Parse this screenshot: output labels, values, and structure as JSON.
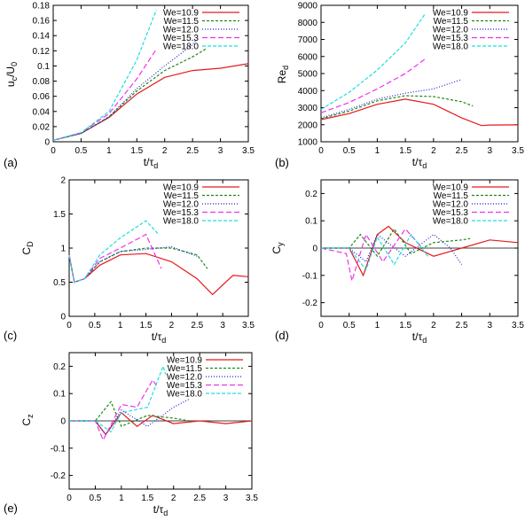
{
  "legend_labels": [
    "We=10.9",
    "We=11.5",
    "We=12.0",
    "We=15.3",
    "We=18.0"
  ],
  "series_colors": [
    "#e41a1c",
    "#1a8a1a",
    "#1f1fd0",
    "#ee33ee",
    "#22dddd"
  ],
  "series_dash": [
    "",
    "3,2",
    "1,2",
    "6,3",
    "4,2"
  ],
  "chart_data": [
    {
      "id": "a",
      "panel_label": "(a)",
      "type": "line",
      "xlabel": "t/τd",
      "ylabel": "uc/U0",
      "xlim": [
        0,
        3.5
      ],
      "ylim": [
        0,
        0.18
      ],
      "xticks": [
        "0",
        "0.5",
        "1",
        "1.5",
        "2",
        "2.5",
        "3",
        "3.5"
      ],
      "yticks": [
        "0",
        "0.02",
        "0.04",
        "0.06",
        "0.08",
        "0.1",
        "0.12",
        "0.14",
        "0.16",
        "0.18"
      ],
      "legend": "top-right",
      "series": [
        {
          "x": [
            0,
            0.5,
            1.0,
            1.5,
            2.0,
            2.5,
            3.0,
            3.5
          ],
          "y": [
            0.002,
            0.011,
            0.032,
            0.063,
            0.085,
            0.094,
            0.097,
            0.103
          ]
        },
        {
          "x": [
            0,
            0.5,
            1.0,
            1.5,
            2.0,
            2.5,
            2.75
          ],
          "y": [
            0.002,
            0.011,
            0.033,
            0.067,
            0.094,
            0.112,
            0.123
          ]
        },
        {
          "x": [
            0,
            0.5,
            1.0,
            1.5,
            2.0,
            2.5,
            2.55
          ],
          "y": [
            0.002,
            0.011,
            0.033,
            0.07,
            0.1,
            0.128,
            0.133
          ]
        },
        {
          "x": [
            0,
            0.5,
            1.0,
            1.5,
            1.85
          ],
          "y": [
            0.002,
            0.012,
            0.037,
            0.083,
            0.122
          ]
        },
        {
          "x": [
            0,
            0.5,
            1.0,
            1.5,
            1.85
          ],
          "y": [
            0.002,
            0.012,
            0.04,
            0.108,
            0.174
          ]
        }
      ]
    },
    {
      "id": "b",
      "panel_label": "(b)",
      "type": "line",
      "xlabel": "t/τd",
      "ylabel": "Red",
      "xlim": [
        0,
        3.5
      ],
      "ylim": [
        1000,
        9000
      ],
      "xticks": [
        "0",
        "0.5",
        "1",
        "1.5",
        "2",
        "2.5",
        "3",
        "3.5"
      ],
      "yticks": [
        "1000",
        "2000",
        "3000",
        "4000",
        "5000",
        "6000",
        "7000",
        "8000",
        "9000"
      ],
      "legend": "top-right",
      "series": [
        {
          "x": [
            0,
            0.5,
            1.0,
            1.5,
            2.0,
            2.5,
            2.85,
            3.0,
            3.5
          ],
          "y": [
            2300,
            2650,
            3200,
            3500,
            3200,
            2400,
            1950,
            1980,
            1990
          ]
        },
        {
          "x": [
            0,
            0.5,
            1.0,
            1.5,
            2.0,
            2.5,
            2.7
          ],
          "y": [
            2350,
            2800,
            3400,
            3700,
            3650,
            3350,
            3100
          ]
        },
        {
          "x": [
            0,
            0.5,
            1.0,
            1.5,
            2.0,
            2.5
          ],
          "y": [
            2400,
            2900,
            3500,
            3850,
            4100,
            4650
          ]
        },
        {
          "x": [
            0,
            0.5,
            1.0,
            1.5,
            1.85
          ],
          "y": [
            2700,
            3300,
            4100,
            5000,
            5850
          ]
        },
        {
          "x": [
            0,
            0.5,
            1.0,
            1.5,
            1.85
          ],
          "y": [
            2900,
            3900,
            5200,
            6800,
            8500
          ]
        }
      ]
    },
    {
      "id": "c",
      "panel_label": "(c)",
      "type": "line",
      "xlabel": "t/τd",
      "ylabel": "CD",
      "xlim": [
        0,
        3.5
      ],
      "ylim": [
        0,
        2
      ],
      "xticks": [
        "0",
        "0.5",
        "1",
        "1.5",
        "2",
        "2.5",
        "3",
        "3.5"
      ],
      "yticks": [
        "0",
        "0.5",
        "1",
        "1.5",
        "2"
      ],
      "legend": "top-right",
      "series": [
        {
          "x": [
            0,
            0.1,
            0.3,
            0.6,
            1.0,
            1.5,
            2.0,
            2.5,
            2.8,
            3.2,
            3.5
          ],
          "y": [
            0.9,
            0.5,
            0.55,
            0.75,
            0.9,
            0.92,
            0.8,
            0.55,
            0.32,
            0.6,
            0.58
          ]
        },
        {
          "x": [
            0,
            0.1,
            0.3,
            0.6,
            1.0,
            1.5,
            2.0,
            2.5,
            2.7
          ],
          "y": [
            0.9,
            0.5,
            0.55,
            0.8,
            0.95,
            1.0,
            1.0,
            0.9,
            0.7
          ]
        },
        {
          "x": [
            0,
            0.1,
            0.3,
            0.6,
            1.0,
            1.5,
            2.0,
            2.5
          ],
          "y": [
            0.9,
            0.5,
            0.55,
            0.8,
            0.95,
            0.98,
            1.02,
            0.88
          ]
        },
        {
          "x": [
            0,
            0.1,
            0.3,
            0.6,
            1.0,
            1.5,
            1.8
          ],
          "y": [
            0.9,
            0.5,
            0.55,
            0.85,
            1.0,
            1.2,
            0.7
          ]
        },
        {
          "x": [
            0,
            0.1,
            0.3,
            0.6,
            1.0,
            1.5,
            1.75
          ],
          "y": [
            0.9,
            0.5,
            0.55,
            0.9,
            1.15,
            1.4,
            1.2
          ]
        }
      ]
    },
    {
      "id": "d",
      "panel_label": "(d)",
      "type": "line",
      "xlabel": "t/τd",
      "ylabel": "Cy",
      "xlim": [
        0,
        3.5
      ],
      "ylim": [
        -0.25,
        0.25
      ],
      "xticks": [
        "0",
        "0.5",
        "1",
        "1.5",
        "2",
        "2.5",
        "3",
        "3.5"
      ],
      "yticks": [
        "-0.2",
        "-0.1",
        "0",
        "0.1",
        "0.2"
      ],
      "legend": "top-right",
      "series": [
        {
          "x": [
            0,
            0.5,
            0.75,
            1.0,
            1.2,
            1.5,
            2.0,
            2.5,
            3.0,
            3.5
          ],
          "y": [
            0,
            0,
            -0.1,
            0.05,
            0.08,
            0.02,
            -0.03,
            0.0,
            0.03,
            0.02
          ]
        },
        {
          "x": [
            0,
            0.5,
            0.7,
            1.0,
            1.3,
            1.6,
            2.0,
            2.5,
            2.65
          ],
          "y": [
            0,
            0,
            0.05,
            -0.03,
            0.07,
            -0.02,
            0.02,
            0.03,
            0.035
          ]
        },
        {
          "x": [
            0,
            0.5,
            0.8,
            1.0,
            1.5,
            2.0,
            2.3,
            2.5
          ],
          "y": [
            0,
            0,
            -0.05,
            0.05,
            -0.03,
            0.05,
            0.0,
            -0.06
          ]
        },
        {
          "x": [
            0,
            0.45,
            0.55,
            0.8,
            1.1,
            1.5,
            1.8
          ],
          "y": [
            0,
            -0.02,
            -0.12,
            0.05,
            -0.05,
            0.07,
            0.0
          ]
        },
        {
          "x": [
            0,
            0.5,
            0.8,
            1.0,
            1.3,
            1.6,
            1.9
          ],
          "y": [
            0,
            0,
            -0.08,
            0.04,
            -0.06,
            0.05,
            -0.03
          ]
        }
      ]
    },
    {
      "id": "e",
      "panel_label": "(e)",
      "type": "line",
      "xlabel": "t/τd",
      "ylabel": "Cz",
      "xlim": [
        0,
        3.5
      ],
      "ylim": [
        -0.25,
        0.25
      ],
      "xticks": [
        "0",
        "0.5",
        "1",
        "1.5",
        "2",
        "2.5",
        "3",
        "3.5"
      ],
      "yticks": [
        "-0.2",
        "-0.1",
        "0",
        "0.1",
        "0.2"
      ],
      "legend": "top-right",
      "series": [
        {
          "x": [
            0,
            0.5,
            0.7,
            1.0,
            1.3,
            1.6,
            2.0,
            2.5,
            3.0,
            3.5
          ],
          "y": [
            0,
            0,
            -0.05,
            0.03,
            -0.02,
            0.02,
            -0.01,
            0.0,
            -0.01,
            0.0
          ]
        },
        {
          "x": [
            0,
            0.5,
            0.8,
            1.0,
            1.5,
            2.0,
            2.3
          ],
          "y": [
            0,
            0,
            0.07,
            -0.02,
            0.02,
            0.01,
            0.0
          ]
        },
        {
          "x": [
            0,
            0.5,
            0.7,
            1.0,
            1.5,
            2.0,
            2.3
          ],
          "y": [
            0,
            0,
            -0.05,
            0.04,
            -0.02,
            0.05,
            0.08
          ]
        },
        {
          "x": [
            0,
            0.5,
            0.65,
            1.0,
            1.3,
            1.6,
            1.7
          ],
          "y": [
            0,
            0,
            -0.07,
            0.06,
            0.05,
            0.15,
            0.12
          ]
        },
        {
          "x": [
            0,
            0.5,
            0.8,
            1.0,
            1.5,
            1.8,
            1.85
          ],
          "y": [
            0,
            0,
            -0.04,
            0.03,
            0.05,
            0.2,
            0.17
          ]
        }
      ]
    }
  ]
}
